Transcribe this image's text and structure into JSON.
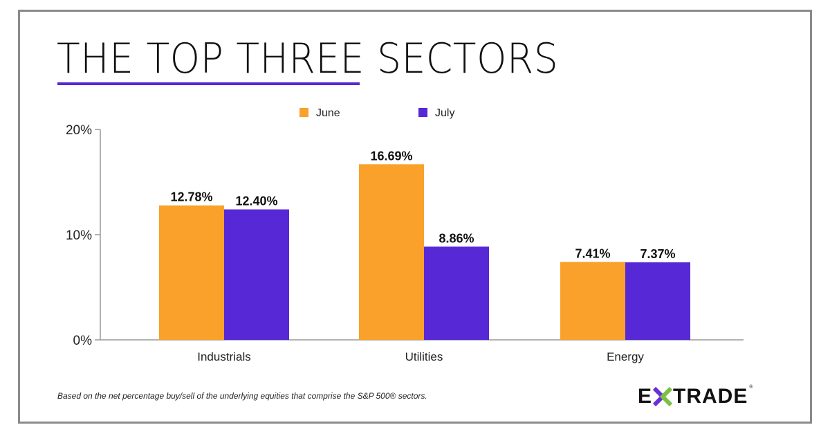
{
  "title": "THE TOP THREE SECTORS",
  "footnote": "Based on the net percentage buy/sell of the underlying equities that comprise the S&P 500® sectors.",
  "logo": "E*TRADE",
  "colors": {
    "june": "#f9a12a",
    "july": "#5728d6",
    "accent": "#5728d6"
  },
  "chart_data": {
    "type": "bar",
    "categories": [
      "Industrials",
      "Utilities",
      "Energy"
    ],
    "series": [
      {
        "name": "June",
        "values": [
          12.78,
          16.69,
          7.41
        ],
        "labels": [
          "12.78%",
          "16.69%",
          "7.41%"
        ]
      },
      {
        "name": "July",
        "values": [
          12.4,
          8.86,
          7.37
        ],
        "labels": [
          "12.40%",
          "8.86%",
          "7.37%"
        ]
      }
    ],
    "yticks": [
      "0%",
      "10%",
      "20%"
    ],
    "ytick_values": [
      0,
      10,
      20
    ],
    "ylim": [
      0,
      20
    ],
    "legend": "top-center",
    "grid": false
  }
}
